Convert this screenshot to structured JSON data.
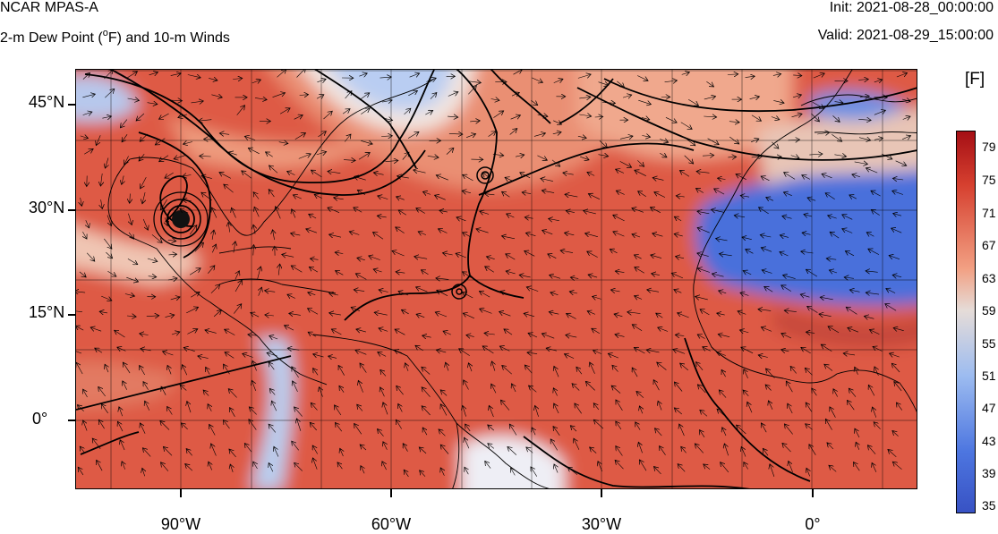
{
  "header": {
    "model": "NCAR MPAS-A",
    "field_prefix": "2-m Dew Point (",
    "field_degree": "o",
    "field_suffix": "F) and 10-m Winds",
    "init": "Init: 2021-08-28_00:00:00",
    "valid": "Valid: 2021-08-29_15:00:00"
  },
  "map": {
    "lat_labels": [
      "45°N",
      "30°N",
      "15°N",
      "0°"
    ],
    "lon_labels": [
      "90°W",
      "60°W",
      "30°W",
      "0°"
    ],
    "features": [
      "hurricane-eye",
      "sea-level-pressure-contours",
      "wind-vectors",
      "coastlines",
      "gridlines"
    ]
  },
  "colorbar": {
    "unit": "[F]",
    "labels": [
      "79",
      "75",
      "71",
      "67",
      "63",
      "59",
      "55",
      "51",
      "47",
      "43",
      "39",
      "35"
    ],
    "colors": {
      "dark_red": "#a50f15",
      "red": "#d6402f",
      "salmon": "#f2a083",
      "light": "#e5dcd8",
      "light_blue": "#9dbcf0",
      "blue": "#4d76e0",
      "dark_blue": "#3852c4"
    }
  }
}
